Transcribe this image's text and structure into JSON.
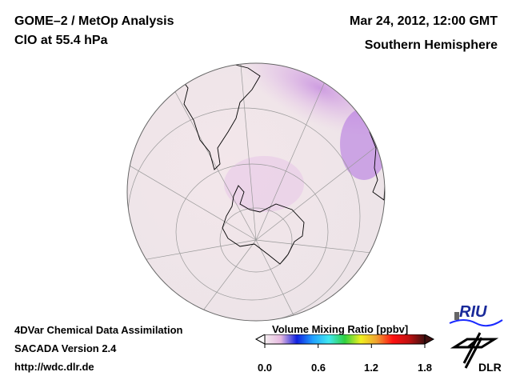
{
  "header": {
    "title_line1": "GOME–2 / MetOp Analysis",
    "title_line2": "ClO at 55.4 hPa",
    "date": "Mar 24, 2012, 12:00 GMT",
    "region": "Southern Hemisphere"
  },
  "footer": {
    "line1": "4DVar Chemical Data Assimilation",
    "line2": "SACADA Version 2.4",
    "line3": "http://wdc.dlr.de"
  },
  "colorbar": {
    "title": "Volume Mixing Ratio [ppbv]",
    "ticks": [
      "0.0",
      "0.6",
      "1.2",
      "1.8"
    ],
    "range": [
      0.0,
      1.8
    ],
    "colors": [
      "#f4eef0",
      "#e6b8e0",
      "#1020e0",
      "#20a0ff",
      "#40e8f0",
      "#30d040",
      "#f0f020",
      "#f0a030",
      "#ff1010",
      "#c01010",
      "#401010"
    ]
  },
  "logos": {
    "riu": "RIU",
    "dlr": "DLR"
  }
}
